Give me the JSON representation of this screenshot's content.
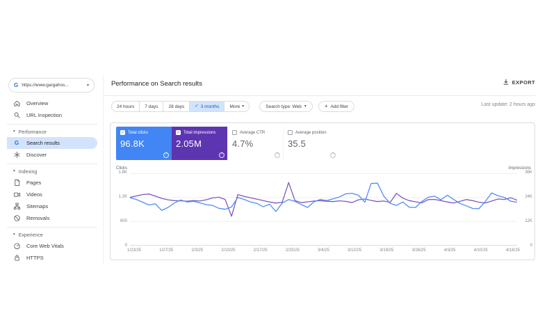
{
  "topbar": {
    "title": "Performance on Search results",
    "export_label": "EXPORT"
  },
  "property_selector": {
    "label": "https://www.gargahos..."
  },
  "icons": {
    "google_g": "G",
    "caret_down": "▾",
    "check": "✓",
    "plus": "+",
    "help": "?"
  },
  "sidebar": {
    "sections": [
      {
        "items": [
          {
            "label": "Overview"
          },
          {
            "label": "URL Inspection"
          }
        ]
      },
      {
        "header": "Performance",
        "items": [
          {
            "label": "Search results",
            "selected": true
          },
          {
            "label": "Discover"
          }
        ]
      },
      {
        "header": "Indexing",
        "items": [
          {
            "label": "Pages"
          },
          {
            "label": "Videos"
          },
          {
            "label": "Sitemaps"
          },
          {
            "label": "Removals"
          }
        ]
      },
      {
        "header": "Experience",
        "items": [
          {
            "label": "Core Web Vitals"
          },
          {
            "label": "HTTPS"
          }
        ]
      }
    ]
  },
  "toolbar": {
    "date_ranges": [
      "24 hours",
      "7 days",
      "28 days",
      "3 months"
    ],
    "selected_range": "3 months",
    "more_label": "More",
    "search_type_label": "Search type: Web",
    "add_filter_label": "Add filter",
    "last_update": "Last update: 2 hours ago"
  },
  "metrics": {
    "cards": [
      {
        "label": "Total clicks",
        "value": "96.8K",
        "selected": true,
        "color": "#4285f4"
      },
      {
        "label": "Total impressions",
        "value": "2.05M",
        "selected": true,
        "color": "#5e35b1"
      },
      {
        "label": "Average CTR",
        "value": "4.7%",
        "selected": false
      },
      {
        "label": "Average position",
        "value": "35.5",
        "selected": false
      }
    ]
  },
  "chart_data": {
    "type": "line",
    "title": "Performance on Search results",
    "grid": true,
    "legend_position": "none",
    "x_labels": [
      "1/23/25",
      "1/27/25",
      "2/3/25",
      "2/10/25",
      "2/17/25",
      "2/25/25",
      "3/4/25",
      "3/12/25",
      "3/19/25",
      "3/26/25",
      "4/3/25",
      "4/10/25",
      "4/18/25"
    ],
    "left_axis": {
      "label": "Clicks",
      "ticks": [
        "1.8K",
        "1.2K",
        "600",
        "0"
      ],
      "range": [
        0,
        1800
      ]
    },
    "right_axis": {
      "label": "Impressions",
      "ticks": [
        "36K",
        "24K",
        "12K",
        "0"
      ],
      "range": [
        0,
        36
      ],
      "unit": "K"
    },
    "series": [
      {
        "name": "Total impressions",
        "axis": "right",
        "axis_max": 36,
        "color": "#7e57c2",
        "values": [
          24.0,
          24.7,
          25.4,
          25.7,
          24.6,
          23.5,
          22.8,
          22.4,
          22.3,
          22.1,
          22.4,
          22.2,
          22.8,
          23.7,
          24.1,
          23.0,
          14.6,
          25.4,
          24.5,
          23.8,
          23.1,
          22.4,
          21.7,
          21.2,
          21.6,
          31.4,
          22.4,
          21.4,
          21.8,
          22.2,
          22.4,
          22.1,
          21.9,
          22.3,
          22.0,
          21.4,
          22.8,
          23.2,
          22.5,
          21.9,
          22.2,
          21.5,
          26.0,
          23.6,
          22.4,
          21.8,
          21.3,
          22.9,
          23.0,
          22.4,
          21.7,
          21.2,
          22.0,
          22.9,
          22.4,
          21.6,
          21.2,
          22.2,
          23.2,
          23.0,
          23.8,
          22.6
        ]
      },
      {
        "name": "Total clicks",
        "axis": "left",
        "axis_max": 1800,
        "color": "#4f8df7",
        "values": [
          1190,
          1150,
          1080,
          1010,
          1040,
          875,
          950,
          1060,
          1135,
          1085,
          1105,
          1065,
          1020,
          1000,
          930,
          905,
          960,
          1200,
          1150,
          1085,
          1050,
          965,
          1030,
          850,
          1060,
          1145,
          1100,
          1020,
          950,
          1090,
          1150,
          1120,
          1165,
          1210,
          1290,
          1300,
          1255,
          1080,
          1545,
          1555,
          1230,
          1050,
          1000,
          1085,
          955,
          950,
          1100,
          1205,
          1230,
          1140,
          1255,
          1150,
          1050,
          990,
          925,
          920,
          1100,
          1310,
          1240,
          1200,
          1105,
          1080
        ]
      }
    ]
  }
}
